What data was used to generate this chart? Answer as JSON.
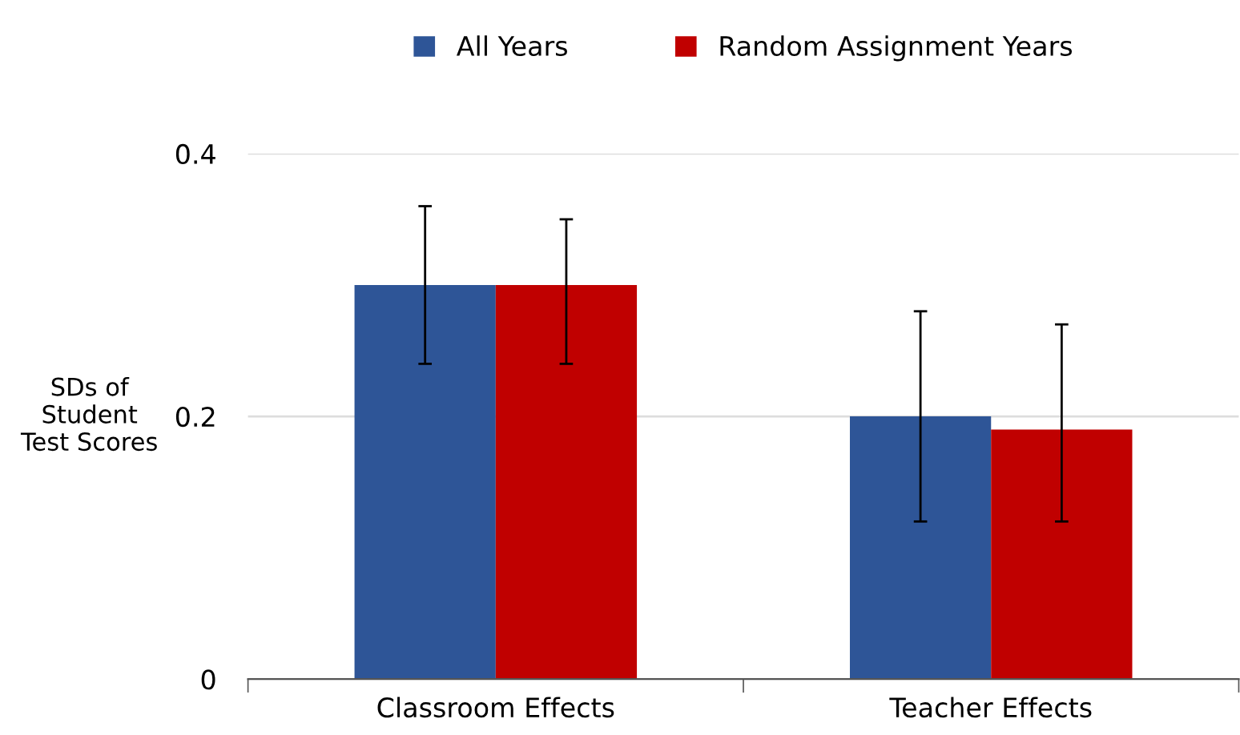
{
  "chart_data": {
    "type": "bar",
    "ylabel": "SDs of\nStudent\nTest Scores",
    "categories": [
      "Classroom Effects",
      "Teacher Effects"
    ],
    "series": [
      {
        "name": "All Years",
        "color": "#2e5597",
        "values": [
          0.3,
          0.2
        ],
        "errors": [
          [
            0.24,
            0.36
          ],
          [
            0.12,
            0.28
          ]
        ]
      },
      {
        "name": "Random Assignment Years",
        "color": "#c00000",
        "values": [
          0.3,
          0.19
        ],
        "errors": [
          [
            0.24,
            0.35
          ],
          [
            0.12,
            0.27
          ]
        ]
      }
    ],
    "ylim": [
      0,
      0.4
    ],
    "yticks": [
      0,
      0.2,
      0.4
    ],
    "grid": "y",
    "legend": "top"
  }
}
